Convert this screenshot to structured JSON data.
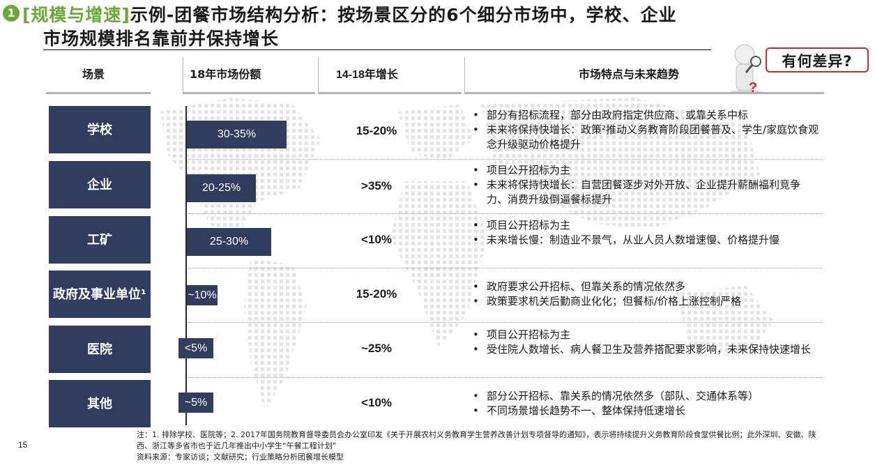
{
  "title": {
    "number": "1",
    "tag": "[规模与增速]",
    "line1_rest": "示例-团餐市场结构分析：按场景区分的6个细分市场中，学校、企业",
    "line2": "市场规模排名靠前并保持增长"
  },
  "callout": "有何差异?",
  "headers": {
    "scene": "场景",
    "share": "18年市场份额",
    "growth": "14-18年增长",
    "features": "市场特点与未来趋势"
  },
  "rows": [
    {
      "scene": "学校",
      "share": "30-35%",
      "share_value": 32.5,
      "growth": "15-20%",
      "features": [
        "部分有招标流程，部分由政府指定供应商、或靠关系中标",
        "未来将保持快增长：政策²推动义务教育阶段团餐普及、学生/家庭饮食观念升级驱动价格提升"
      ]
    },
    {
      "scene": "企业",
      "share": "20-25%",
      "share_value": 22.5,
      "growth": ">35%",
      "features": [
        "项目公开招标为主",
        "未来将保持快增长：自营团餐逐步对外开放、企业提升薪酬福利竞争力、消费升级倒逼餐标提升"
      ]
    },
    {
      "scene": "工矿",
      "share": "25-30%",
      "share_value": 27.5,
      "growth": "<10%",
      "features": [
        "项目公开招标为主",
        "未来增长慢：制造业不景气，从业人员人数增速慢、价格提升慢"
      ]
    },
    {
      "scene": "政府及事业单位¹",
      "share": "~10%",
      "share_value": 10,
      "growth": "15-20%",
      "features": [
        "政府要求公开招标、但靠关系的情况依然多",
        "政策要求机关后勤商业化化；但餐标/价格上涨控制严格"
      ]
    },
    {
      "scene": "医院",
      "share": "<5%",
      "share_value": 4,
      "growth": "~25%",
      "features": [
        "项目公开招标为主",
        "受住院人数增长、病人餐卫生及营养搭配要求影响，未来保持快速增长"
      ]
    },
    {
      "scene": "其他",
      "share": "~5%",
      "share_value": 5,
      "growth": "<10%",
      "features": [
        "部分公开招标、靠关系的情况依然多（部队、交通体系等）",
        "不同场景增长趋势不一、整体保持低速增长"
      ]
    }
  ],
  "footer": {
    "page": "15",
    "note1": "注：1. 排除学校、医院等；2. 2017年国务院教育督导委员会办公室印发《关于开展农村义务教育学生营养改善计划专项督导的通知》，表示将持续提升义务教育阶段食堂供餐比例；此外深圳、安徽、陕西、浙江等多省市也于近几年推出中小学生“午餐工程计划”",
    "note2": "资料来源：专家访谈；文献研究；行业策略分析团餐增长模型"
  },
  "colors": {
    "navy": "#313d5f",
    "green": "#6aa83a",
    "red": "#d6242b"
  }
}
